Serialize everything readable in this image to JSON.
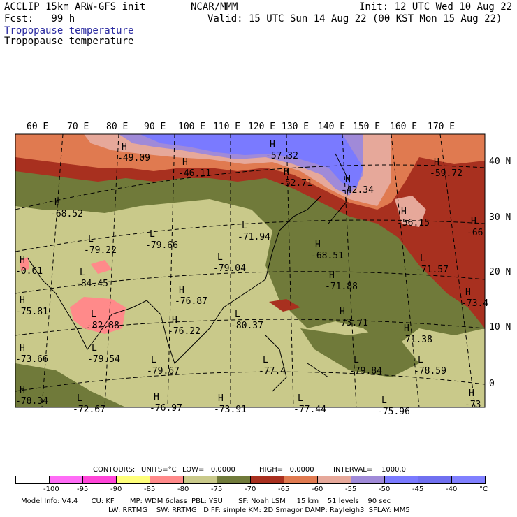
{
  "header": {
    "line1_left": "ACCLIP 15km ARW-GFS init",
    "line1_center": "NCAR/MMM",
    "line1_right": "Init: 12 UTC Wed 10 Aug 22",
    "line2_left": "Fcst:   99 h",
    "line2_right": "Valid: 15 UTC Sun 14 Aug 22 (00 KST Mon 15 Aug 22)",
    "field_line1": "Tropopause temperature",
    "field_line2": "Tropopause temperature"
  },
  "map": {
    "lon_labels": [
      "60 E",
      "70 E",
      "80 E",
      "90 E",
      "100 E",
      "110 E",
      "120 E",
      "130 E",
      "140 E",
      "150 E",
      "160 E",
      "170 E"
    ],
    "lat_labels": [
      "40 N",
      "30 N",
      "20 N",
      "10 N",
      "0"
    ],
    "extrema": [
      {
        "hl": "H",
        "value": "-49.09"
      },
      {
        "hl": "H",
        "value": "-46.11"
      },
      {
        "hl": "H",
        "value": "-57.32"
      },
      {
        "hl": "H",
        "value": "-52.71"
      },
      {
        "hl": "H",
        "value": "-42.34"
      },
      {
        "hl": "H",
        "value": "-59.72"
      },
      {
        "hl": "H",
        "value": "-68.52"
      },
      {
        "hl": "H",
        "value": "-56.15"
      },
      {
        "hl": "H",
        "value": "-66"
      },
      {
        "hl": "L",
        "value": "-79.22"
      },
      {
        "hl": "L",
        "value": "-79.66"
      },
      {
        "hl": "L",
        "value": "-71.94"
      },
      {
        "hl": "H",
        "value": "-68.51"
      },
      {
        "hl": "L",
        "value": "-71.57"
      },
      {
        "hl": "L",
        "value": "-79.04"
      },
      {
        "hl": "H",
        "value": "-71.88"
      },
      {
        "hl": "L",
        "value": "-84.45"
      },
      {
        "hl": "H",
        "value": "-75.81"
      },
      {
        "hl": "H",
        "value": "-73.4"
      },
      {
        "hl": "L",
        "value": "-82.88"
      },
      {
        "hl": "H",
        "value": "-76.87"
      },
      {
        "hl": "L",
        "value": "-80.37"
      },
      {
        "hl": "H",
        "value": "-73.71"
      },
      {
        "hl": "H",
        "value": "-71.38"
      },
      {
        "hl": "H",
        "value": "-76.22"
      },
      {
        "hl": "H",
        "value": "-73.66"
      },
      {
        "hl": "L",
        "value": "-79.54"
      },
      {
        "hl": "L",
        "value": "-79.67"
      },
      {
        "hl": "L",
        "value": "-77.4"
      },
      {
        "hl": "L",
        "value": "-79.84"
      },
      {
        "hl": "L",
        "value": "-78.59"
      },
      {
        "hl": "H",
        "value": "-73"
      },
      {
        "hl": "H",
        "value": "-78.34"
      },
      {
        "hl": "L",
        "value": "-72.67"
      },
      {
        "hl": "H",
        "value": "-76.97"
      },
      {
        "hl": "H",
        "value": "-73.91"
      },
      {
        "hl": "L",
        "value": "-77.44"
      },
      {
        "hl": "L",
        "value": "-75.96"
      },
      {
        "hl": "H",
        "value": "-0.61"
      }
    ]
  },
  "contours_line": {
    "contours": "CONTOURS:",
    "units": "UNITS=°C",
    "low": "LOW=   0.0000",
    "high": "HIGH=   0.0000",
    "interval": "INTERVAL=    1000.0"
  },
  "colorbar": {
    "colors": [
      "#ffffff",
      "#ff6cf6",
      "#ff44d8",
      "#ffff7a",
      "#ff8a8a",
      "#c9c98a",
      "#707a3a",
      "#a8301f",
      "#e07a50",
      "#e6a89a",
      "#a08ad8",
      "#7a7aff",
      "#7070f0",
      "#8080ff"
    ],
    "labels": [
      "-100",
      "-95",
      "-90",
      "-85",
      "-80",
      "-75",
      "-70",
      "-65",
      "-60",
      "-55",
      "-50",
      "-45",
      "-40",
      "°C"
    ]
  },
  "footer": {
    "line1": "Model Info: V4.4      CU: KF       MP: WDM 6class  PBL: YSU       SF: Noah LSM     15 km    51 levels    90 sec",
    "line2": "LW: RRTMG    SW: RRTMG   DIFF: simple KM: 2D Smagor DAMP: Rayleigh3  SFLAY: MM5"
  }
}
